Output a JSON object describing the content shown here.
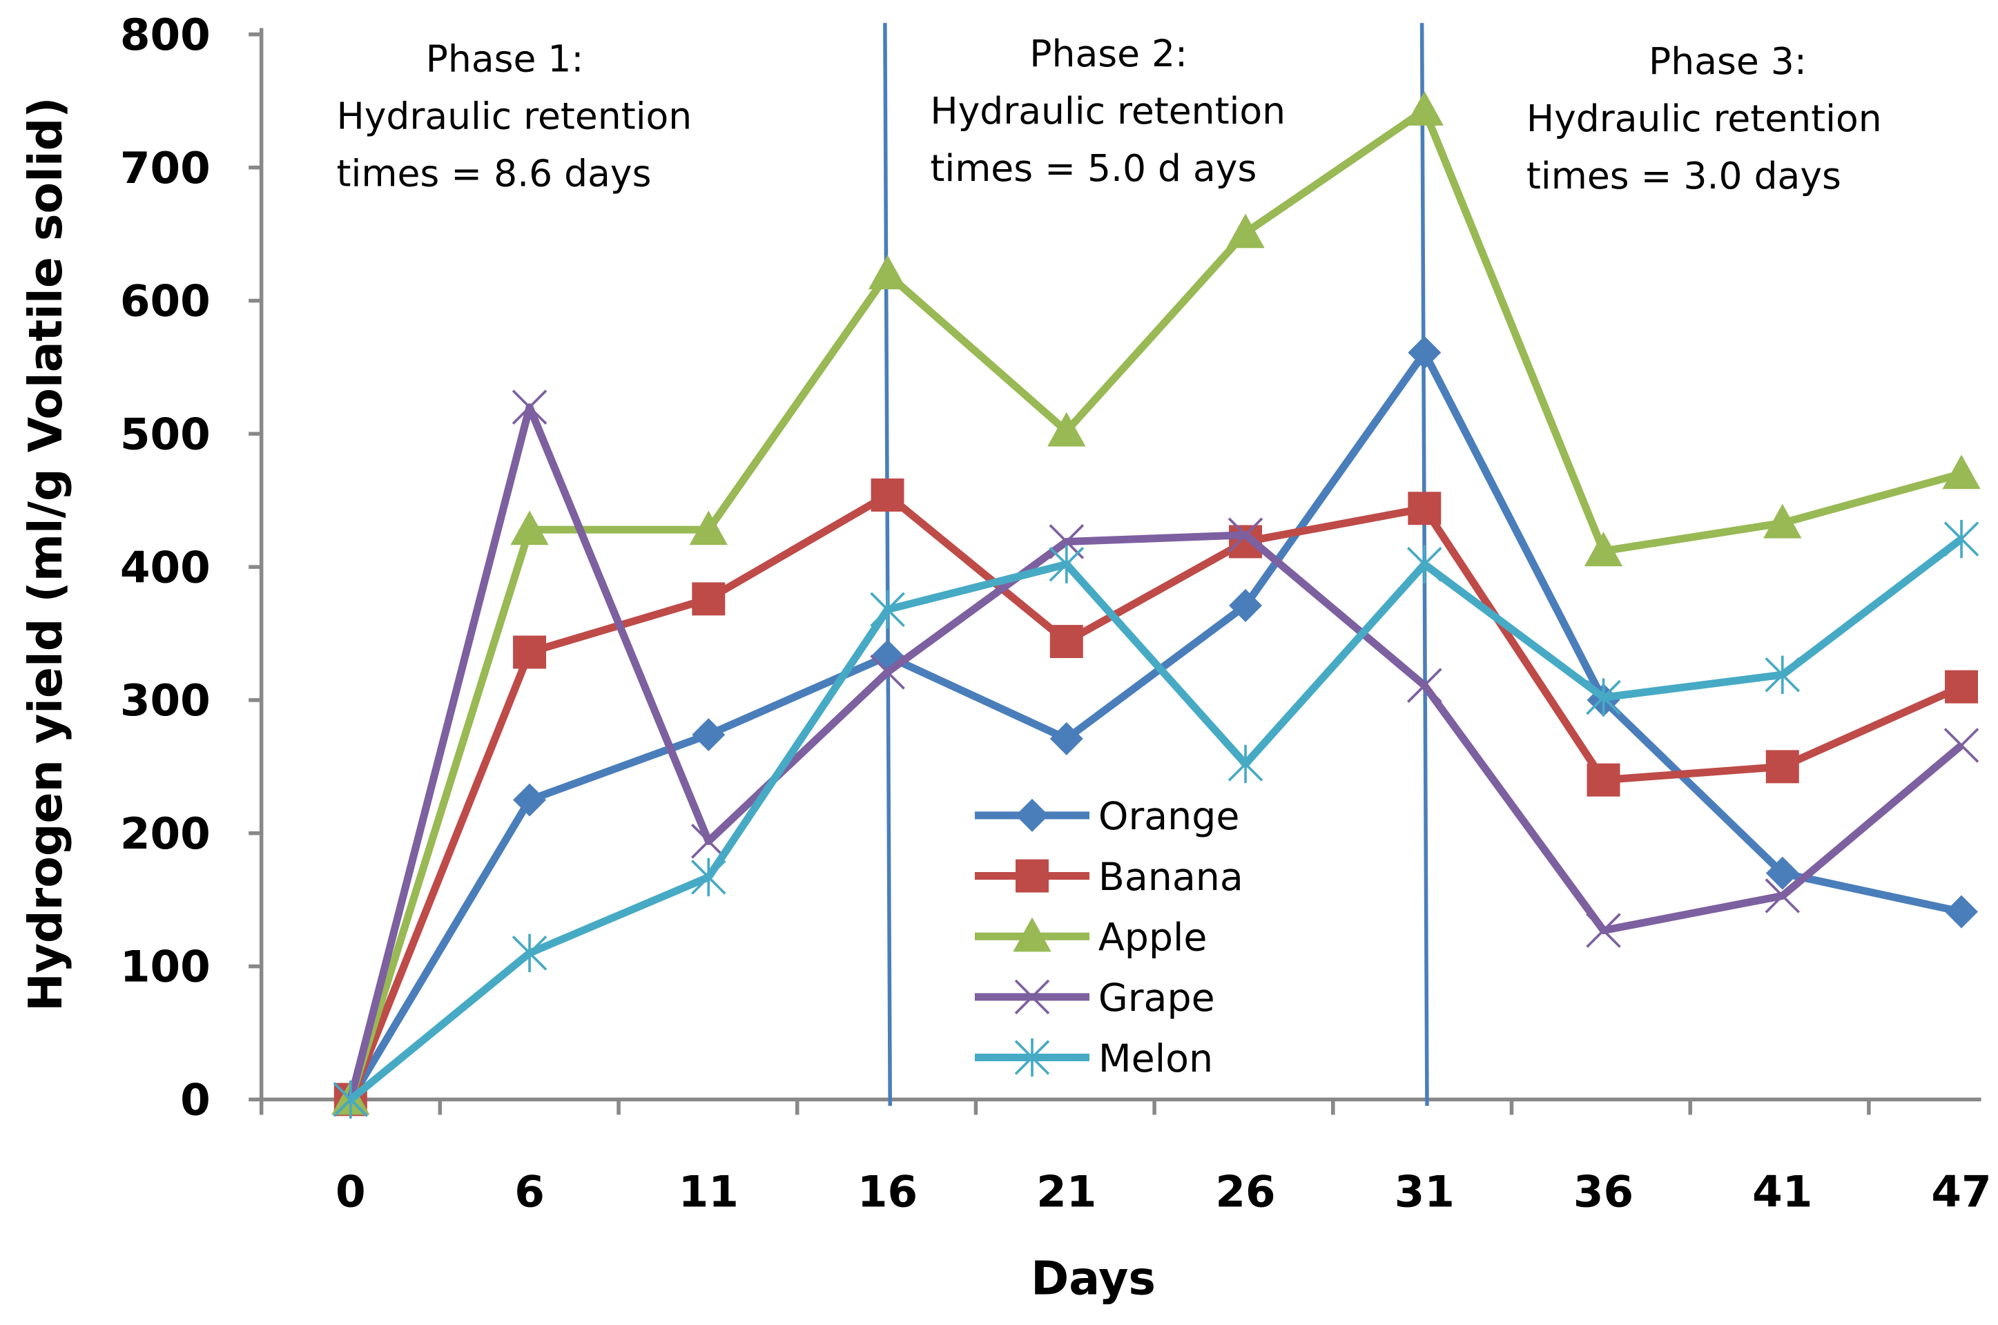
{
  "chart_data": {
    "type": "line",
    "title": "",
    "xlabel": "Days",
    "ylabel": "Hydrogen yield (ml/g Volatile solid)",
    "ylim": [
      0,
      800
    ],
    "yticks": [
      0,
      100,
      200,
      300,
      400,
      500,
      600,
      700,
      800
    ],
    "categories": [
      "0",
      "6",
      "11",
      "16",
      "21",
      "26",
      "31",
      "36",
      "41",
      "47"
    ],
    "grid": false,
    "legend_position": "center",
    "series": [
      {
        "name": "Orange",
        "color": "#4a7ebb",
        "marker": "diamond",
        "values": [
          0,
          225,
          274,
          333,
          271,
          371,
          561,
          300,
          170,
          141
        ]
      },
      {
        "name": "Banana",
        "color": "#be4b48",
        "marker": "square",
        "values": [
          0,
          336,
          376,
          454,
          344,
          419,
          444,
          240,
          250,
          310
        ]
      },
      {
        "name": "Apple",
        "color": "#98b954",
        "marker": "triangle",
        "values": [
          0,
          428,
          428,
          620,
          502,
          651,
          743,
          412,
          433,
          470
        ]
      },
      {
        "name": "Grape",
        "color": "#7d60a0",
        "marker": "x",
        "values": [
          0,
          520,
          194,
          321,
          419,
          424,
          311,
          127,
          153,
          266
        ]
      },
      {
        "name": "Melon",
        "color": "#46aac5",
        "marker": "star",
        "values": [
          0,
          110,
          167,
          368,
          402,
          252,
          402,
          302,
          319,
          421
        ]
      }
    ],
    "phase_lines": {
      "color": "#4a7ebb",
      "at_categories": [
        "16",
        "31"
      ]
    },
    "annotations": [
      {
        "title": "Phase 1:",
        "line1": "Hydraulic retention",
        "line2": "times = 8.6 days"
      },
      {
        "title": "Phase 2:",
        "line1": "Hydraulic retention",
        "line2": "times = 5.0 d ays"
      },
      {
        "title": "Phase 3:",
        "line1": "Hydraulic retention",
        "line2": "times = 3.0 days"
      }
    ]
  }
}
